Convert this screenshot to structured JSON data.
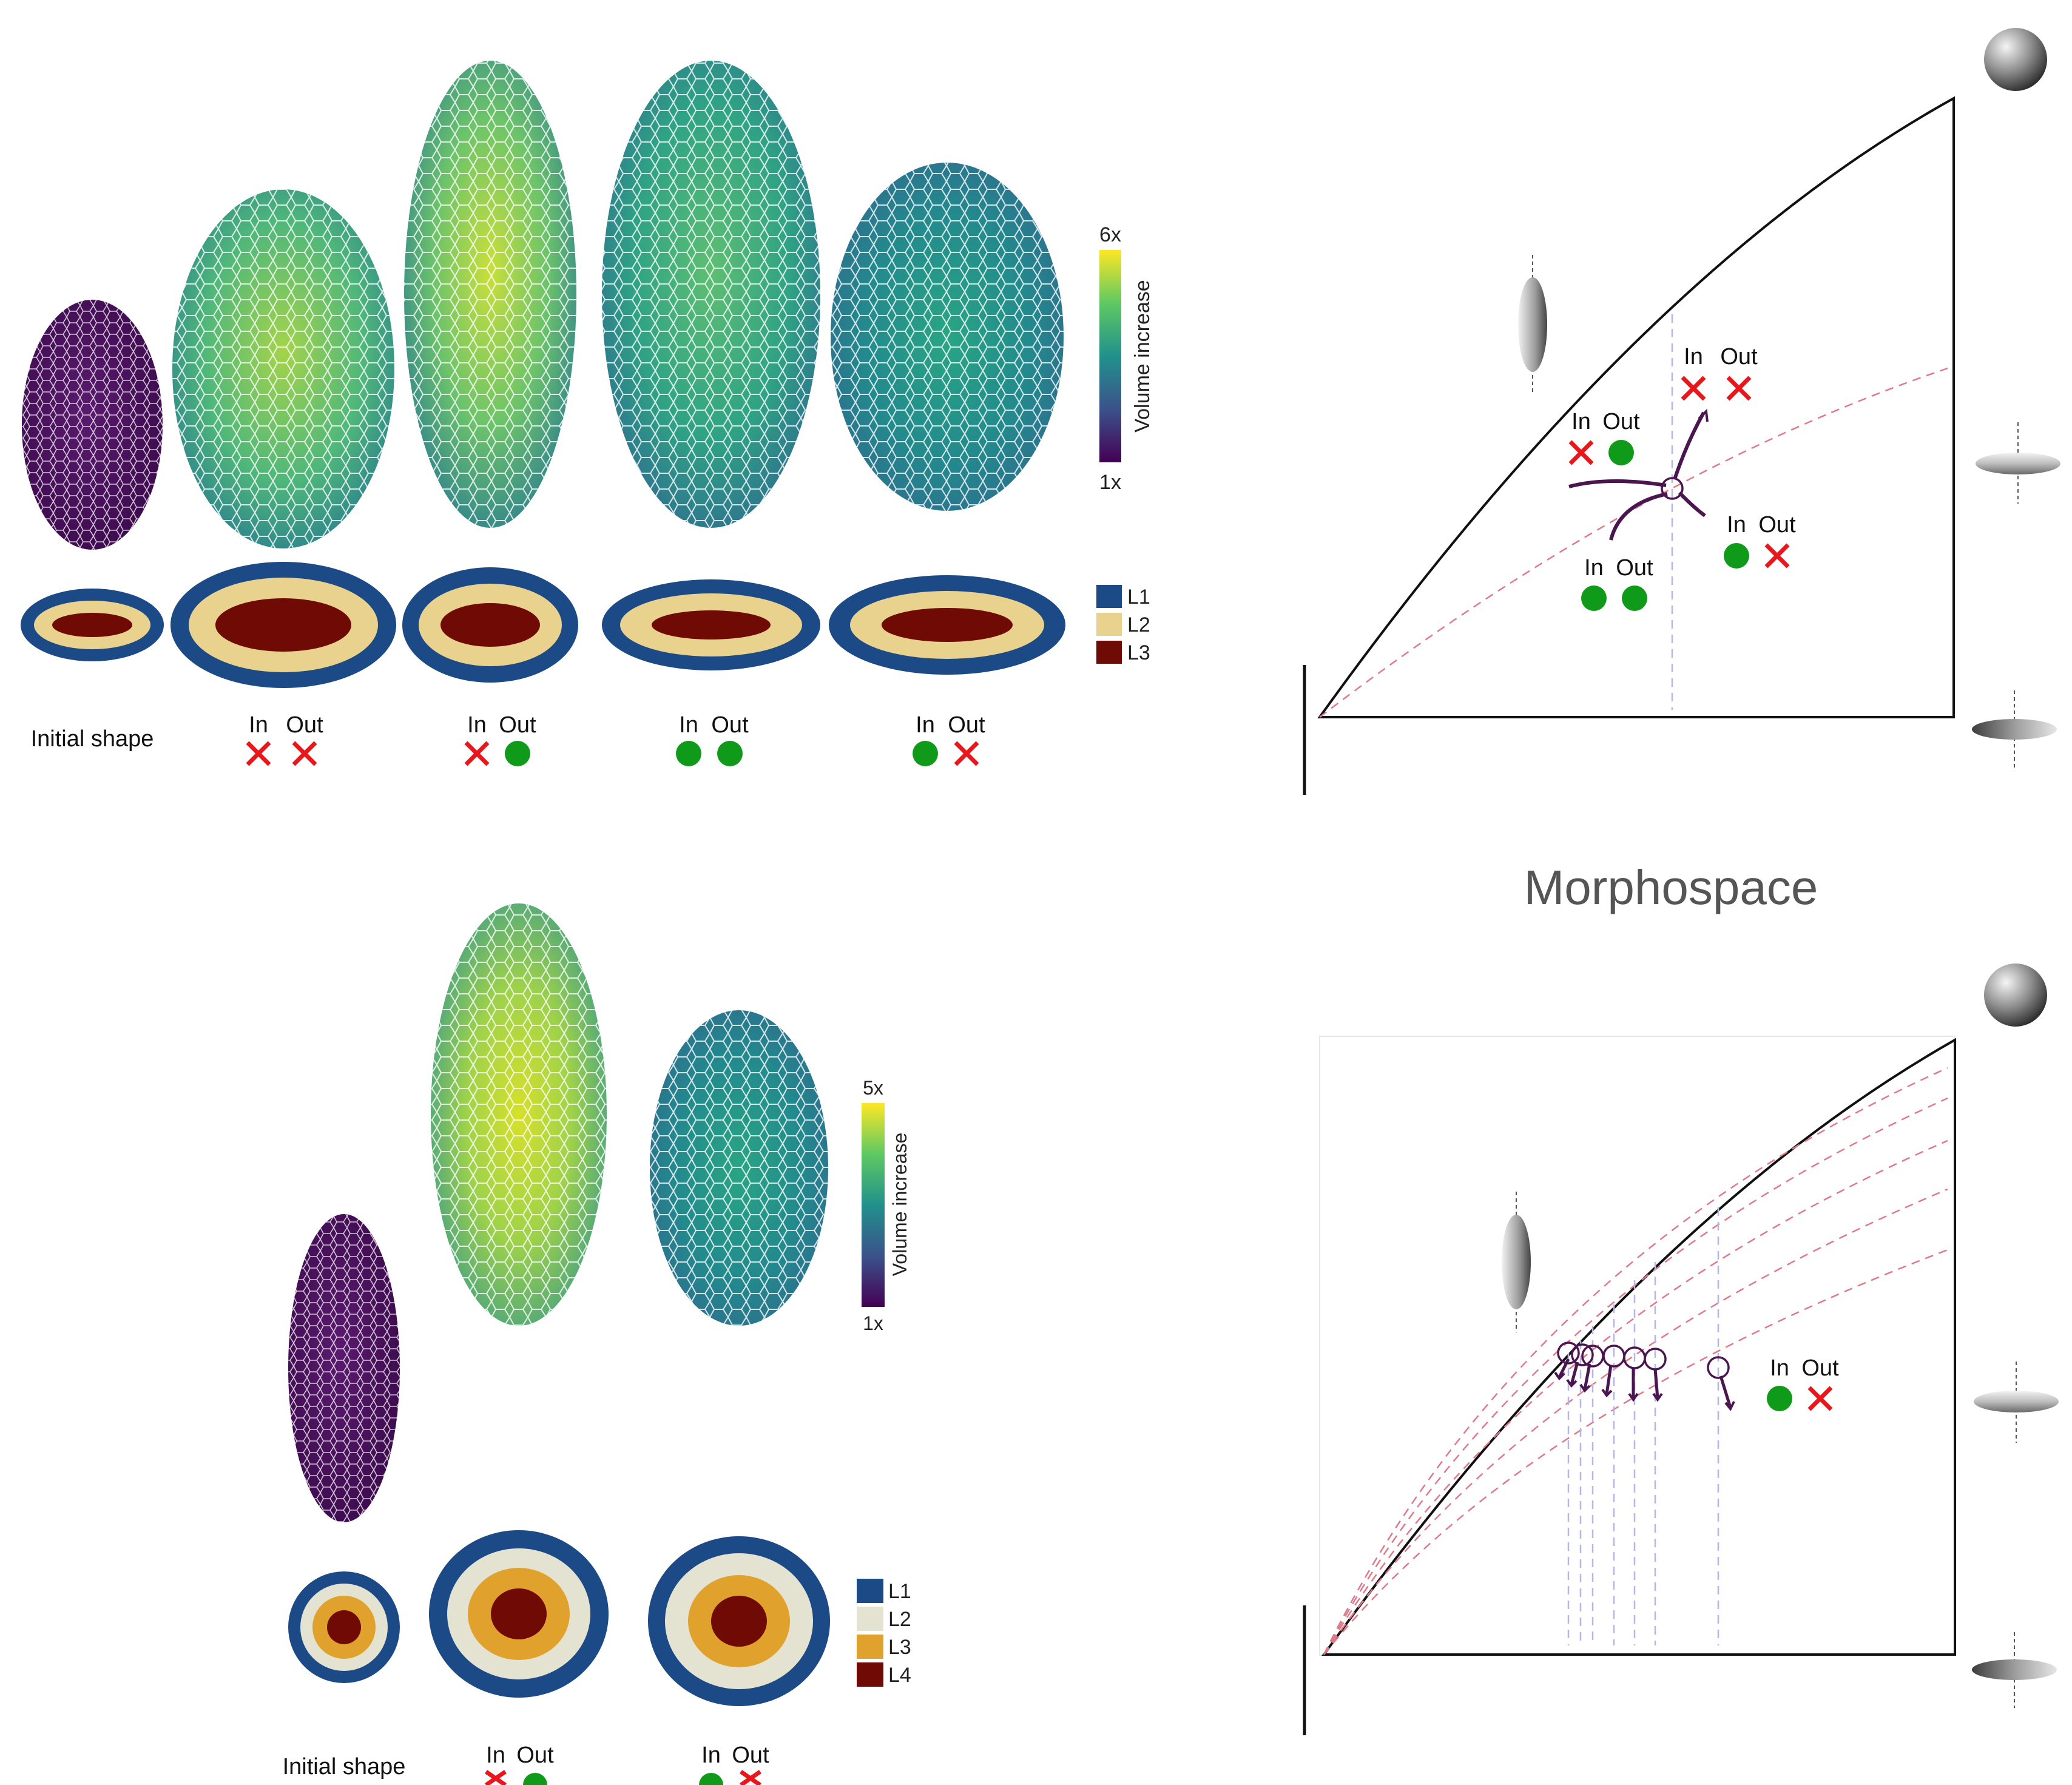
{
  "title": "Morphospace",
  "colors": {
    "viridis": [
      "#440154",
      "#3b528b",
      "#21918c",
      "#5ec962",
      "#fde725"
    ],
    "cross": "#e8171b",
    "check": "#109a1a",
    "trajectory": "#4b1650",
    "layer1": "#1b4a86",
    "layer2_top": "#e8d28e",
    "layer3_top": "#6f0a05",
    "layer2_bottom": "#e4e2d1",
    "layer3_bottom": "#e0a22c",
    "layer4_bottom": "#6f0a05"
  },
  "top_panel": {
    "colorbar": {
      "max_label": "6x",
      "min_label": "1x",
      "title": "Volume increase"
    },
    "legend": [
      "L1",
      "L2",
      "L3"
    ],
    "initial_label": "Initial shape",
    "conditions": [
      {
        "in": "In",
        "out": "Out",
        "in_mark": "cross",
        "out_mark": "cross"
      },
      {
        "in": "In",
        "out": "Out",
        "in_mark": "cross",
        "out_mark": "check"
      },
      {
        "in": "In",
        "out": "Out",
        "in_mark": "check",
        "out_mark": "check"
      },
      {
        "in": "In",
        "out": "Out",
        "in_mark": "check",
        "out_mark": "cross"
      }
    ]
  },
  "bottom_panel": {
    "colorbar": {
      "max_label": "5x",
      "min_label": "1x",
      "title": "Volume increase"
    },
    "legend": [
      "L1",
      "L2",
      "L3",
      "L4"
    ],
    "initial_label": "Initial shape",
    "conditions": [
      {
        "in": "In",
        "out": "Out",
        "in_mark": "cross",
        "out_mark": "check"
      },
      {
        "in": "In",
        "out": "Out",
        "in_mark": "check",
        "out_mark": "cross"
      }
    ]
  },
  "morphospace_top": {
    "annotations": [
      {
        "in": "In",
        "out": "Out",
        "in_mark": "cross",
        "out_mark": "cross"
      },
      {
        "in": "In",
        "out": "Out",
        "in_mark": "cross",
        "out_mark": "check"
      },
      {
        "in": "In",
        "out": "Out",
        "in_mark": "check",
        "out_mark": "cross"
      },
      {
        "in": "In",
        "out": "Out",
        "in_mark": "check",
        "out_mark": "check"
      }
    ]
  },
  "morphospace_bottom": {
    "annotations": [
      {
        "in": "In",
        "out": "Out",
        "in_mark": "check",
        "out_mark": "cross"
      }
    ]
  }
}
